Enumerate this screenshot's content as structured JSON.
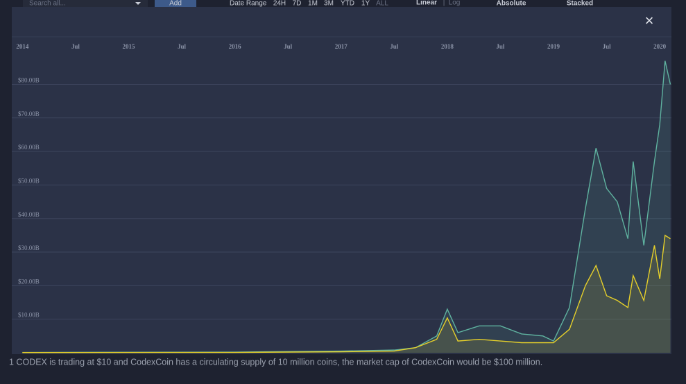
{
  "ui": {
    "search_placeholder": "Search all...",
    "add_button": "Add",
    "date_range": "Date Range",
    "ranges": [
      "24H",
      "7D",
      "1M",
      "3M",
      "YTD",
      "1Y",
      "ALL"
    ],
    "scale_linear": "Linear",
    "scale_separator": "|",
    "scale_log": "Log",
    "mode_absolute": "Absolute",
    "mode_stacked": "Stacked",
    "close": "×",
    "footer_text": "1 CODEX is trading at $10 and CodexCoin has a circulating supply of 10 million coins, the market cap of CodexCoin would be $100 million."
  },
  "chart_data": {
    "type": "area",
    "xlim": [
      2013.9,
      2020.11
    ],
    "xticks": [
      {
        "value": 2014,
        "label": "2014"
      },
      {
        "value": 2014.5,
        "label": "Jul"
      },
      {
        "value": 2015,
        "label": "2015"
      },
      {
        "value": 2015.5,
        "label": "Jul"
      },
      {
        "value": 2016,
        "label": "2016"
      },
      {
        "value": 2016.5,
        "label": "Jul"
      },
      {
        "value": 2017,
        "label": "2017"
      },
      {
        "value": 2017.5,
        "label": "Jul"
      },
      {
        "value": 2018,
        "label": "2018"
      },
      {
        "value": 2018.5,
        "label": "Jul"
      },
      {
        "value": 2019,
        "label": "2019"
      },
      {
        "value": 2019.5,
        "label": "Jul"
      },
      {
        "value": 2020,
        "label": "2020"
      }
    ],
    "ylim": [
      0,
      89
    ],
    "yticks": [
      {
        "value": 10,
        "label": "$10.00B"
      },
      {
        "value": 20,
        "label": "$20.00B"
      },
      {
        "value": 30,
        "label": "$30.00B"
      },
      {
        "value": 40,
        "label": "$40.00B"
      },
      {
        "value": 50,
        "label": "$50.00B"
      },
      {
        "value": 60,
        "label": "$60.00B"
      },
      {
        "value": 70,
        "label": "$70.00B"
      },
      {
        "value": 80,
        "label": "$80.00B"
      }
    ],
    "grid": true,
    "x": [
      2014.0,
      2016.0,
      2017.0,
      2017.5,
      2017.7,
      2017.9,
      2018.0,
      2018.1,
      2018.3,
      2018.5,
      2018.7,
      2018.9,
      2019.0,
      2019.15,
      2019.3,
      2019.4,
      2019.5,
      2019.6,
      2019.7,
      2019.75,
      2019.85,
      2019.95,
      2020.0,
      2020.05,
      2020.1
    ],
    "series": [
      {
        "color": "#5fb3a0",
        "values": [
          0.1,
          0.2,
          0.5,
          0.8,
          1.5,
          5,
          13,
          6,
          8,
          8,
          5.6,
          5,
          3.5,
          13.5,
          43,
          61,
          49,
          45,
          34,
          57,
          32,
          57,
          68,
          87,
          80
        ]
      },
      {
        "color": "#e6d02a",
        "values": [
          0.05,
          0.1,
          0.3,
          0.5,
          1.5,
          4,
          10.4,
          3.5,
          4,
          3.5,
          3,
          3,
          3,
          7,
          20,
          26,
          17,
          15.6,
          13.5,
          23,
          15.6,
          32,
          22,
          35,
          34
        ]
      }
    ]
  }
}
